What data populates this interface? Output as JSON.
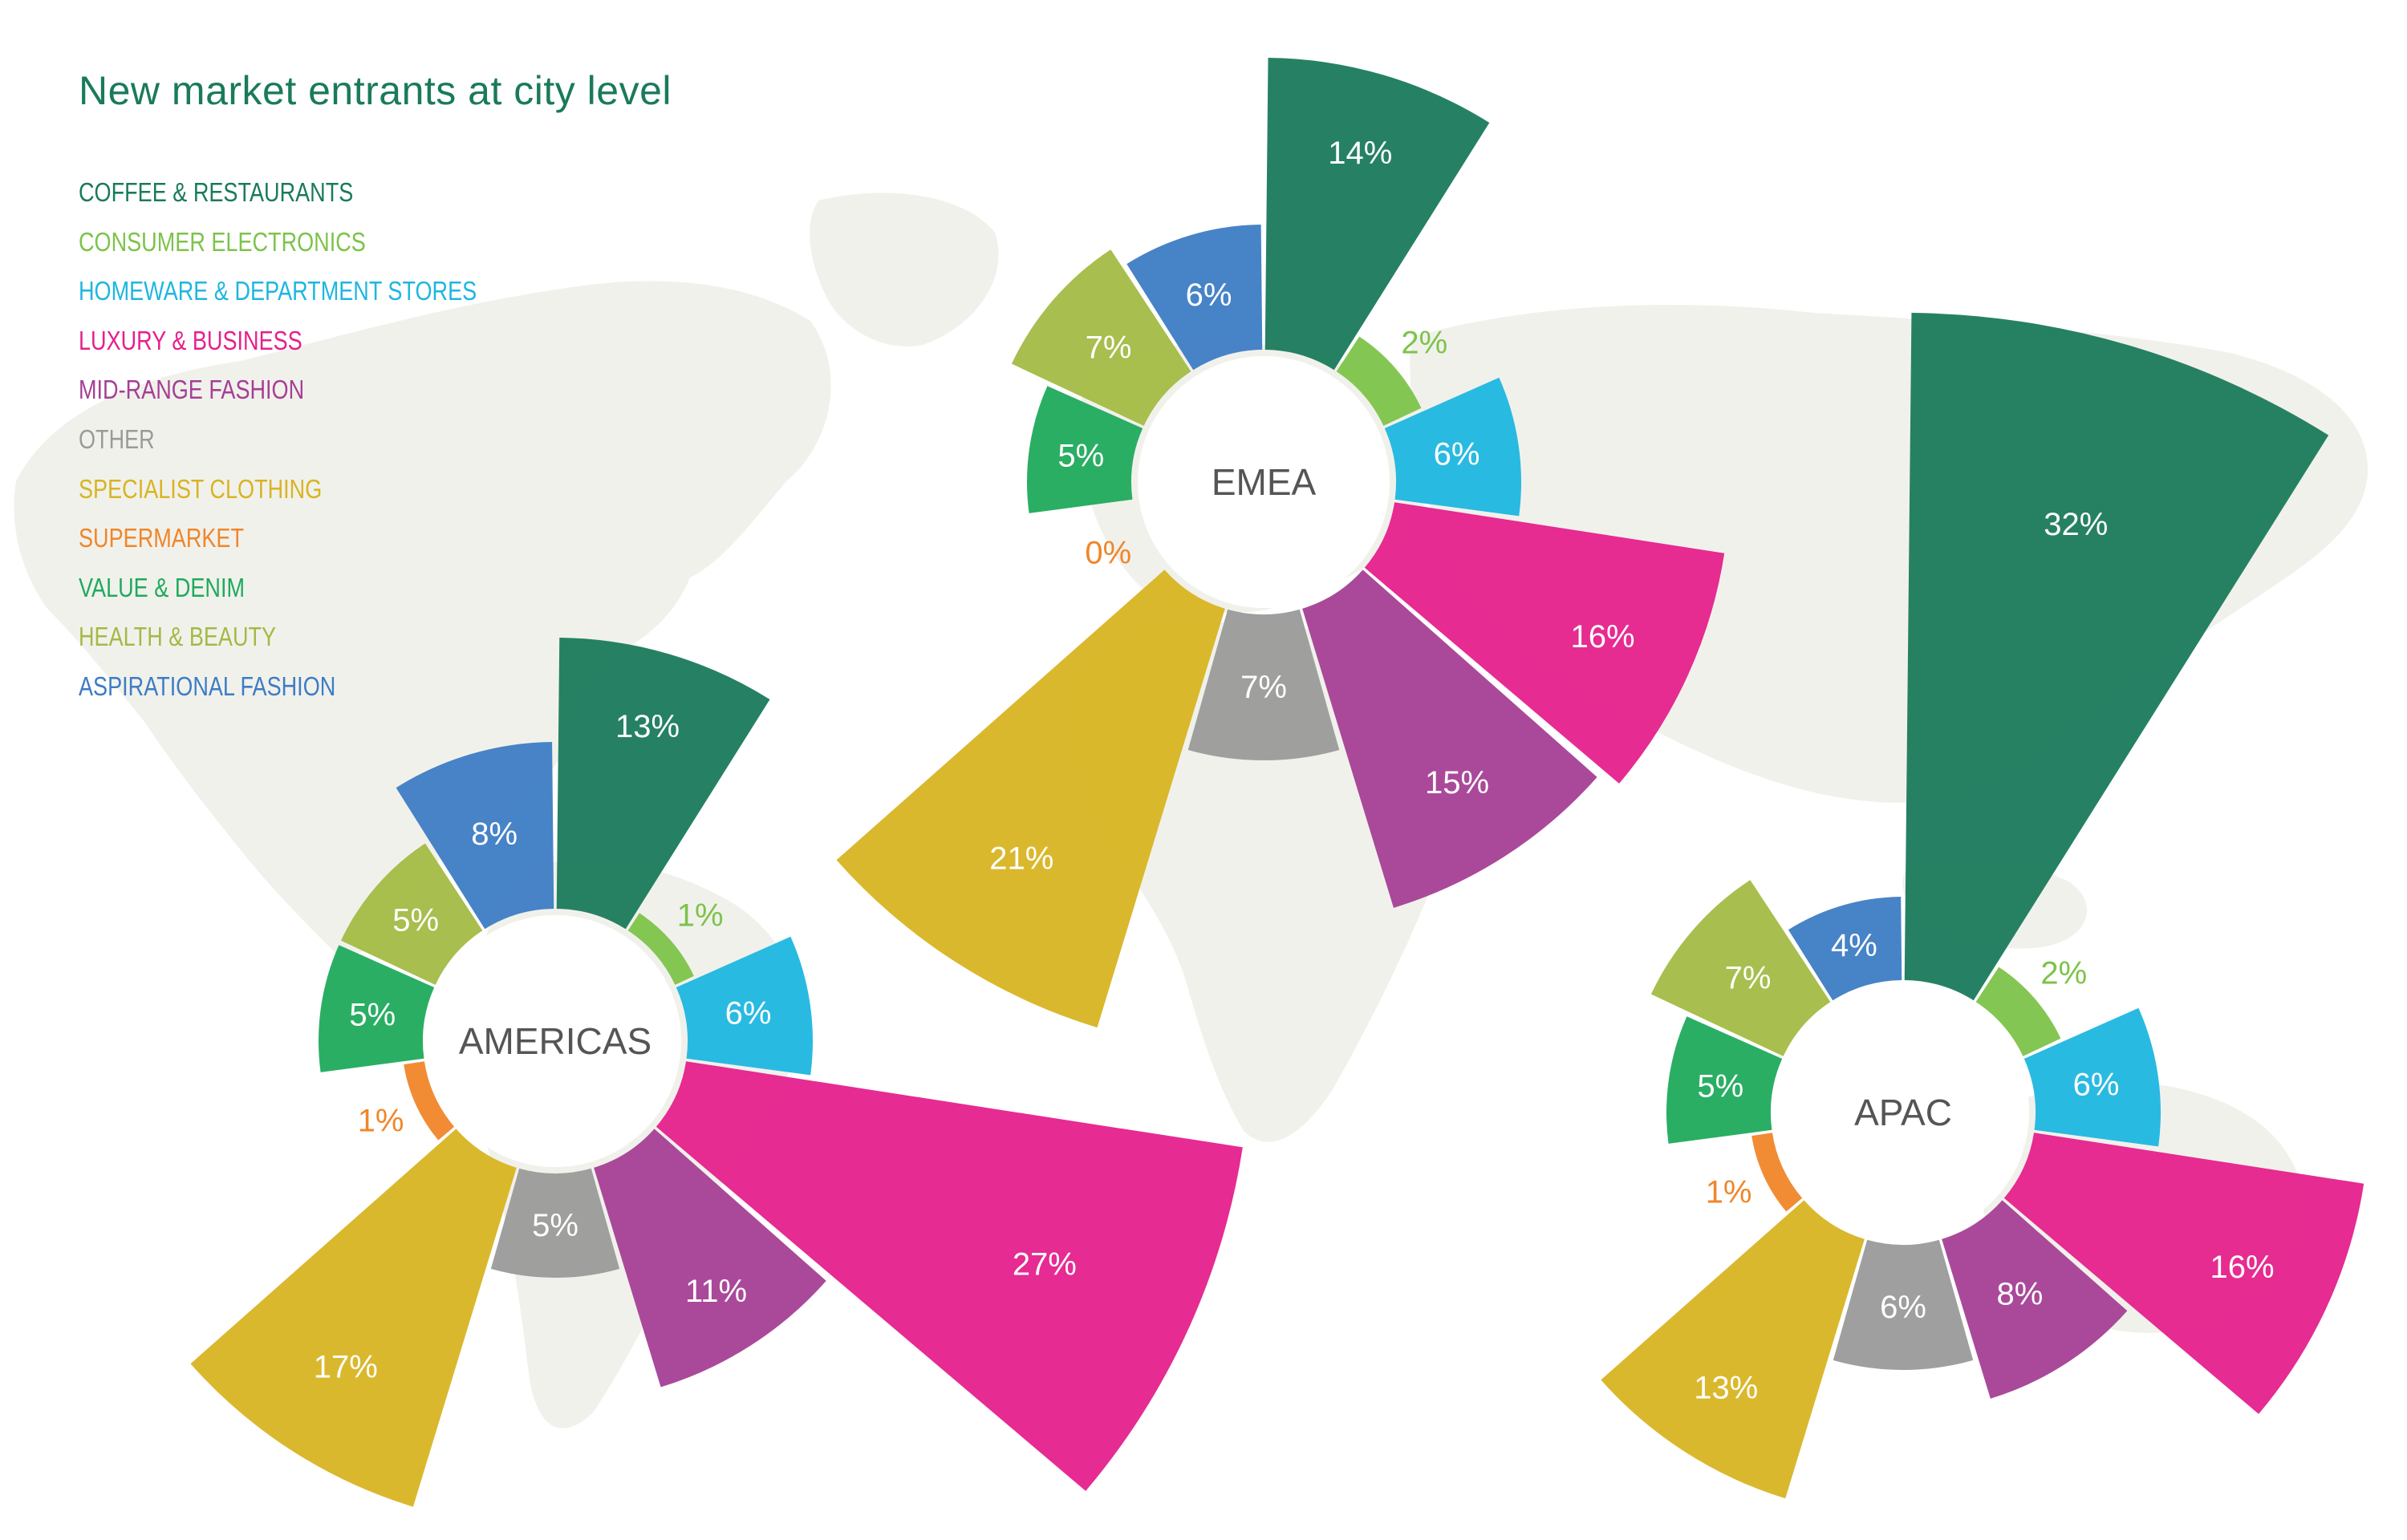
{
  "header": {
    "title": "New market entrants at city level"
  },
  "legend": [
    {
      "label": "COFFEE & RESTAURANTS",
      "color": "#1a7a5c"
    },
    {
      "label": "CONSUMER ELECTRONICS",
      "color": "#7dc34a"
    },
    {
      "label": "HOMEWARE & DEPARTMENT STORES",
      "color": "#1eb6e0"
    },
    {
      "label": "LUXURY & BUSINESS",
      "color": "#e5208c"
    },
    {
      "label": "MID-RANGE FASHION",
      "color": "#a53f95"
    },
    {
      "label": "OTHER",
      "color": "#9a9a9a"
    },
    {
      "label": "SPECIALIST CLOTHING",
      "color": "#d8b422"
    },
    {
      "label": "SUPERMARKET",
      "color": "#f0862a"
    },
    {
      "label": "VALUE & DENIM",
      "color": "#1faa5c"
    },
    {
      "label": "HEALTH & BEAUTY",
      "color": "#a3ba45"
    },
    {
      "label": "ASPIRATIONAL FASHION",
      "color": "#3d7cc4"
    }
  ],
  "chart_data": {
    "type": "polar-area",
    "title": "New market entrants at city level",
    "categories": [
      "COFFEE & RESTAURANTS",
      "CONSUMER ELECTRONICS",
      "HOMEWARE & DEPARTMENT STORES",
      "LUXURY & BUSINESS",
      "MID-RANGE FASHION",
      "OTHER",
      "SPECIALIST CLOTHING",
      "SUPERMARKET",
      "VALUE & DENIM",
      "HEALTH & BEAUTY",
      "ASPIRATIONAL FASHION"
    ],
    "series": [
      {
        "name": "AMERICAS",
        "values": [
          13,
          1,
          6,
          27,
          11,
          5,
          17,
          1,
          5,
          5,
          8
        ],
        "labels": [
          "13%",
          "1%",
          "6%",
          "27%",
          "11%",
          "5%",
          "17%",
          "1%",
          "5%",
          "5%",
          "8%"
        ]
      },
      {
        "name": "EMEA",
        "values": [
          14,
          2,
          6,
          16,
          15,
          7,
          21,
          0,
          5,
          7,
          6
        ],
        "labels": [
          "14%",
          "2%",
          "6%",
          "16%",
          "15%",
          "7%",
          "21%",
          "0%",
          "5%",
          "7%",
          "6%"
        ]
      },
      {
        "name": "APAC",
        "values": [
          32,
          2,
          6,
          16,
          8,
          6,
          13,
          1,
          5,
          7,
          4
        ],
        "labels": [
          "32%",
          "2%",
          "6%",
          "16%",
          "8%",
          "6%",
          "13%",
          "1%",
          "5%",
          "7%",
          "4%"
        ]
      }
    ],
    "unit": "%"
  }
}
